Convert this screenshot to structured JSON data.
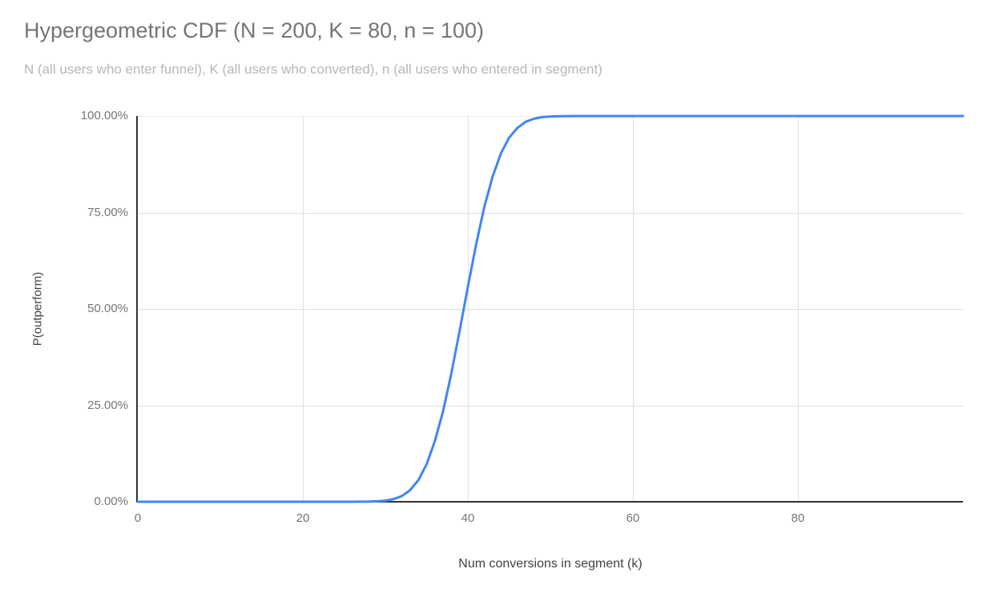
{
  "title": "Hypergeometric CDF (N = 200, K = 80, n = 100)",
  "subtitle": "N (all users who enter funnel), K (all users who converted), n (all users who entered in segment)",
  "colors": {
    "line": "#4285f4",
    "grid": "#e0e0e0",
    "axis": "#333333",
    "title_text": "#757575",
    "subtitle_text": "#b7b7b7",
    "tick_text": "#757575",
    "axis_title_text": "#424242",
    "background": "#ffffff"
  },
  "chart_data": {
    "type": "line",
    "title": "Hypergeometric CDF (N = 200, K = 80, n = 100)",
    "subtitle": "N (all users who enter funnel), K (all users who converted), n (all users who entered in segment)",
    "xlabel": "Num conversions in segment (k)",
    "ylabel": "P(outperform)",
    "xlim": [
      0,
      100
    ],
    "ylim": [
      0,
      1
    ],
    "grid": true,
    "legend": "none",
    "x_ticks": [
      {
        "v": 0,
        "label": "0"
      },
      {
        "v": 20,
        "label": "20"
      },
      {
        "v": 40,
        "label": "40"
      },
      {
        "v": 60,
        "label": "60"
      },
      {
        "v": 80,
        "label": "80"
      }
    ],
    "y_ticks": [
      {
        "v": 0.0,
        "label": "0.00%"
      },
      {
        "v": 0.25,
        "label": "25.00%"
      },
      {
        "v": 0.5,
        "label": "50.00%"
      },
      {
        "v": 0.75,
        "label": "75.00%"
      },
      {
        "v": 1.0,
        "label": "100.00%"
      }
    ],
    "series": [
      {
        "name": "P(outperform)",
        "color": "#4285f4",
        "points": [
          [
            0,
            0
          ],
          [
            5,
            0
          ],
          [
            10,
            0
          ],
          [
            15,
            0
          ],
          [
            20,
            0
          ],
          [
            22,
            0
          ],
          [
            24,
            1e-05
          ],
          [
            25,
            2e-05
          ],
          [
            26,
            6e-05
          ],
          [
            27,
            0.0002
          ],
          [
            28,
            0.0005
          ],
          [
            29,
            0.0012
          ],
          [
            30,
            0.003
          ],
          [
            31,
            0.007
          ],
          [
            32,
            0.015
          ],
          [
            33,
            0.03
          ],
          [
            34,
            0.056
          ],
          [
            35,
            0.097
          ],
          [
            36,
            0.157
          ],
          [
            37,
            0.235
          ],
          [
            38,
            0.333
          ],
          [
            39,
            0.443
          ],
          [
            40,
            0.557
          ],
          [
            41,
            0.667
          ],
          [
            42,
            0.765
          ],
          [
            43,
            0.843
          ],
          [
            44,
            0.903
          ],
          [
            45,
            0.944
          ],
          [
            46,
            0.969
          ],
          [
            47,
            0.985
          ],
          [
            48,
            0.993
          ],
          [
            49,
            0.997
          ],
          [
            50,
            0.9988
          ],
          [
            51,
            0.9995
          ],
          [
            52,
            0.9998
          ],
          [
            53,
            0.9999
          ],
          [
            54,
            1
          ],
          [
            55,
            1
          ],
          [
            60,
            1
          ],
          [
            65,
            1
          ],
          [
            70,
            1
          ],
          [
            75,
            1
          ],
          [
            80,
            1
          ],
          [
            85,
            1
          ],
          [
            90,
            1
          ],
          [
            95,
            1
          ],
          [
            100,
            1
          ]
        ]
      }
    ]
  }
}
